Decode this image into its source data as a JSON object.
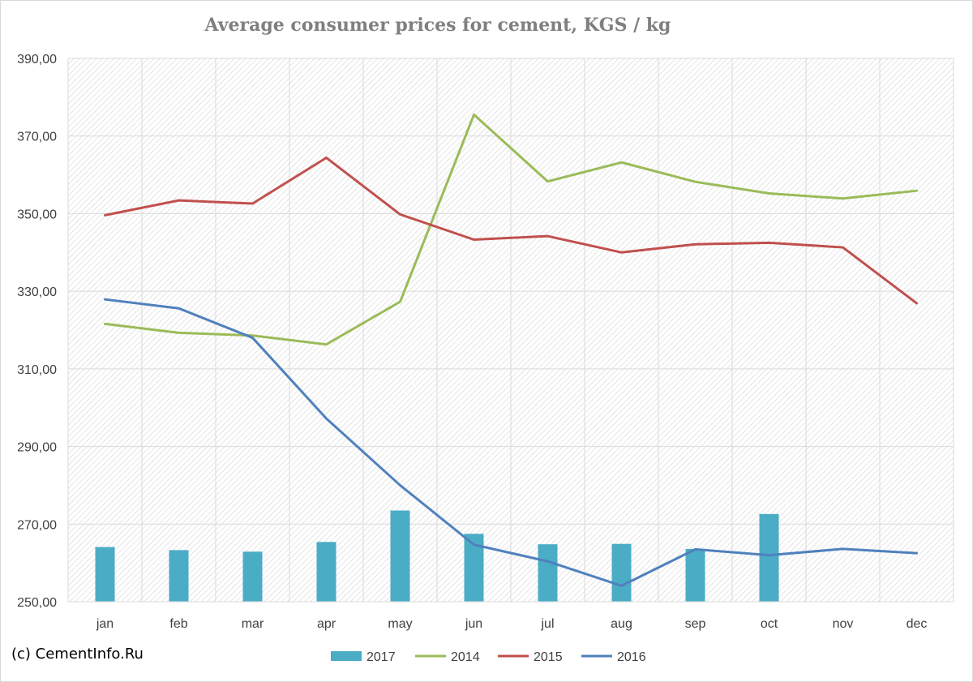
{
  "chart_data": {
    "type": "bar+line",
    "title": "Average consumer prices for cement, KGS / kg",
    "categories": [
      "jan",
      "feb",
      "mar",
      "apr",
      "may",
      "jun",
      "jul",
      "aug",
      "sep",
      "oct",
      "nov",
      "dec"
    ],
    "ylim": [
      250,
      390
    ],
    "yticks": [
      "250,00",
      "270,00",
      "290,00",
      "310,00",
      "330,00",
      "350,00",
      "370,00",
      "390,00"
    ],
    "ytick_values": [
      250,
      270,
      290,
      310,
      330,
      350,
      370,
      390
    ],
    "grid": true,
    "legend_position": "bottom",
    "bars": [
      {
        "name": "2017",
        "color": "#4bacc6",
        "values": [
          264.1,
          263.3,
          262.9,
          265.4,
          273.5,
          267.5,
          264.8,
          264.9,
          263.6,
          272.6,
          null,
          null
        ]
      }
    ],
    "series": [
      {
        "name": "2014",
        "color": "#9bbb59",
        "values": [
          321.6,
          319.3,
          318.6,
          316.3,
          327.3,
          375.5,
          358.3,
          363.2,
          358.2,
          355.2,
          353.9,
          355.9
        ]
      },
      {
        "name": "2015",
        "color": "#c0504d",
        "values": [
          349.6,
          353.4,
          352.6,
          364.4,
          349.8,
          343.3,
          344.2,
          340.0,
          342.1,
          342.5,
          341.3,
          326.9
        ]
      },
      {
        "name": "2016",
        "color": "#4f81bd",
        "values": [
          327.9,
          325.6,
          318.0,
          297.2,
          280.0,
          264.7,
          260.4,
          254.1,
          263.5,
          262.0,
          263.6,
          262.5
        ]
      }
    ]
  },
  "footer": {
    "credit": "(c) CementInfo.Ru"
  }
}
